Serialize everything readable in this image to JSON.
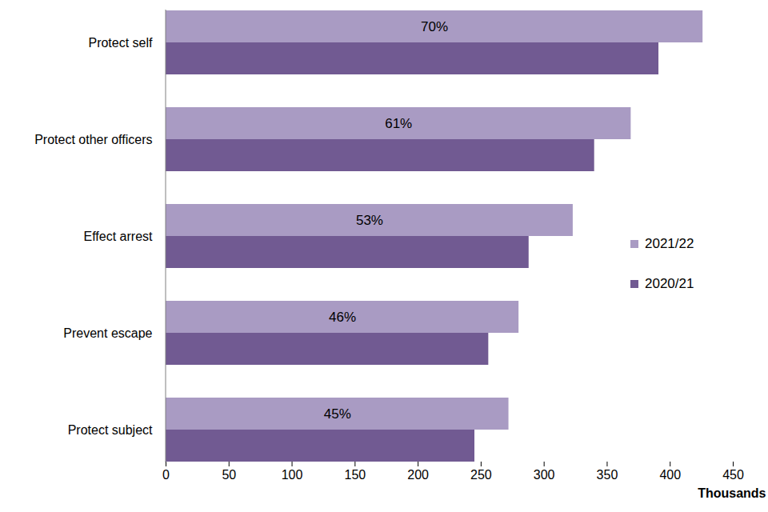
{
  "chart_data": {
    "type": "bar",
    "orientation": "horizontal",
    "categories": [
      "Protect self",
      "Protect other officers",
      "Effect arrest",
      "Prevent escape",
      "Protect subject"
    ],
    "series": [
      {
        "name": "2021/22",
        "color": "#a99bc3",
        "values": [
          426,
          369,
          323,
          280,
          272
        ]
      },
      {
        "name": "2020/21",
        "color": "#715a92",
        "values": [
          391,
          340,
          288,
          256,
          245
        ]
      }
    ],
    "percent_labels": {
      "series": "2021/22",
      "labels": [
        "70%",
        "61%",
        "53%",
        "46%",
        "45%"
      ]
    },
    "x_label": "Thousands",
    "xlim": [
      0,
      450
    ],
    "xticks": [
      0,
      50,
      100,
      150,
      200,
      250,
      300,
      350,
      400,
      450
    ],
    "grid": false,
    "legend": "right"
  }
}
